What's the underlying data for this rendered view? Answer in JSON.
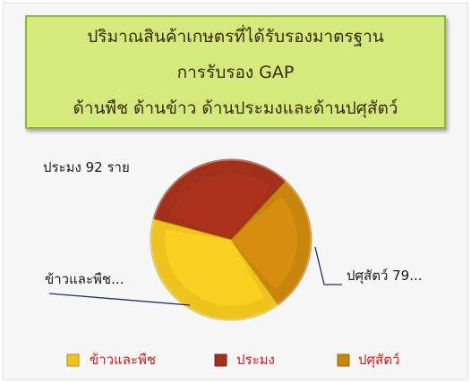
{
  "chart_data": {
    "type": "pie",
    "title_lines": [
      "ปริมาณสินค้าเกษตรที่ได้รับรองมาตรฐาน",
      "การรับรอง GAP",
      "ด้านพืช ด้านข้าว ด้านประมงและด้านปศุสัตว์"
    ],
    "slices": [
      {
        "name": "ข้าวและพืช",
        "value": 110,
        "color": "#efc31e",
        "data_label": "ข้าวและพืช..."
      },
      {
        "name": "ประมง",
        "value": 92,
        "color": "#a2301a",
        "data_label": "ประมง 92 ราย"
      },
      {
        "name": "ปศุสัตว์",
        "value": 79,
        "color": "#c9860f",
        "data_label": "ปศุสัตว์ 79..."
      }
    ],
    "legend": [
      "ข้าวและพืช",
      "ประมง",
      "ปศุสัตว์"
    ],
    "legend_position": "bottom"
  }
}
